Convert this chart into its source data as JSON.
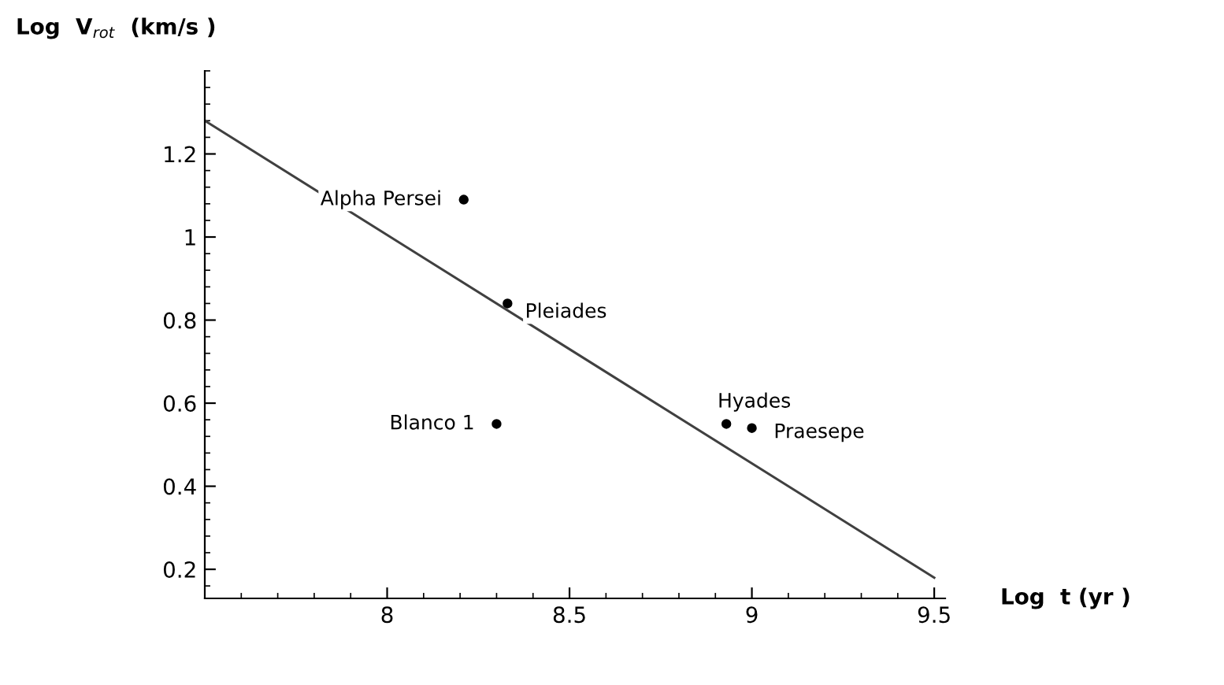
{
  "chart_data": {
    "type": "scatter",
    "ylabel": "Log  V$_{rot}$  (km/s )",
    "xlabel": "Log  t (yr )",
    "series": [
      {
        "x": [
          8.21,
          8.33,
          8.3,
          8.93,
          9.0
        ],
        "values": [
          1.09,
          0.84,
          0.55,
          0.55,
          0.54
        ],
        "color": "#000000",
        "marker": "circle"
      },
      {
        "type": "line",
        "x": [
          7.5,
          9.5
        ],
        "values": [
          1.28,
          0.18
        ],
        "color": "#404040",
        "line_style": "solid",
        "marker": "none"
      }
    ],
    "annotations": [
      {
        "text": "Alpha Persei",
        "x": 8.21,
        "y": 1.09
      },
      {
        "text": "Pleiades",
        "x": 8.33,
        "y": 0.84
      },
      {
        "text": "Blanco 1",
        "x": 8.3,
        "y": 0.55
      },
      {
        "text": "Hyades",
        "x": 8.93,
        "y": 0.55
      },
      {
        "text": "Praesepe",
        "x": 9.0,
        "y": 0.54
      }
    ],
    "xlim": [
      7.5,
      9.53
    ],
    "ylim": [
      0.13,
      1.4
    ],
    "xticks": [
      8,
      8.5,
      9,
      9.5
    ],
    "yticks": [
      0.2,
      0.4,
      0.6,
      0.8,
      1,
      1.2
    ],
    "grid": false,
    "legend": false
  }
}
